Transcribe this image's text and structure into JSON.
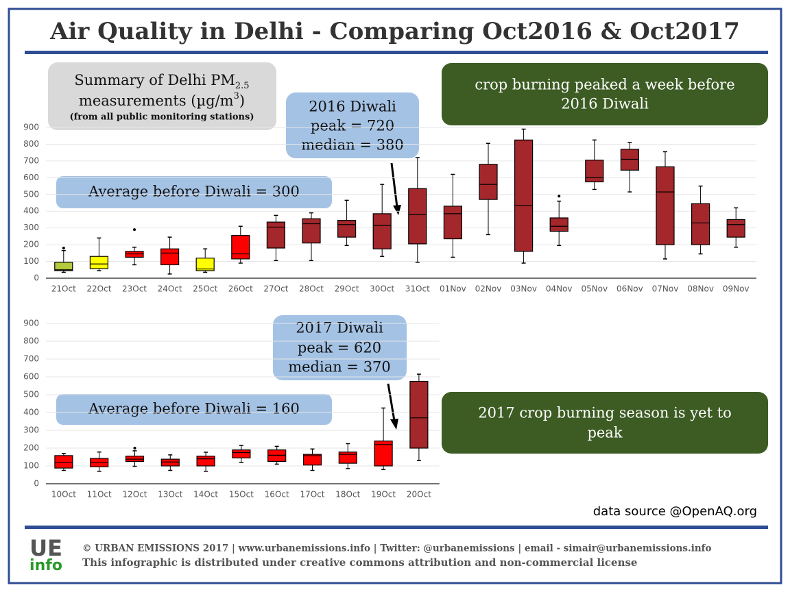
{
  "title": "Air Quality in Delhi - Comparing Oct2016 & Oct2017",
  "summary": {
    "line1": "Summary of Delhi PM",
    "line1_sub": "2.5",
    "line2": "measurements (µg/m",
    "line2_sup": "3",
    "line2_end": ")",
    "line3": "(from all public monitoring stations)"
  },
  "data_source": "data source @OpenAQ.org",
  "footer": {
    "logo_top": "UE",
    "logo_bottom": "info",
    "line1": "© URBAN EMISSIONS 2017 | www.urbanemissions.info | Twitter: @urbanemissions | email - simair@urbanemissions.info",
    "line2": "This infographic is distributed under creative commons attribution and non-commercial license"
  },
  "chart_data": [
    {
      "type": "box",
      "categories": [
        "21Oct",
        "22Oct",
        "23Oct",
        "24Oct",
        "25Oct",
        "26Oct",
        "27Oct",
        "28Oct",
        "29Oct",
        "30Oct",
        "31Oct",
        "01Nov",
        "02Nov",
        "03Nov",
        "04Nov",
        "05Nov",
        "06Nov",
        "07Nov",
        "08Nov",
        "09Nov"
      ],
      "min": [
        35,
        45,
        80,
        25,
        35,
        90,
        105,
        105,
        195,
        130,
        95,
        125,
        260,
        90,
        195,
        530,
        515,
        115,
        145,
        185
      ],
      "q1": [
        45,
        57,
        125,
        80,
        45,
        115,
        180,
        210,
        245,
        175,
        205,
        235,
        470,
        160,
        280,
        575,
        645,
        200,
        200,
        245
      ],
      "median": [
        50,
        85,
        145,
        150,
        55,
        145,
        305,
        325,
        320,
        315,
        380,
        385,
        560,
        435,
        310,
        600,
        710,
        515,
        330,
        320
      ],
      "q3": [
        95,
        130,
        160,
        175,
        120,
        255,
        335,
        355,
        345,
        385,
        535,
        430,
        680,
        825,
        360,
        705,
        770,
        665,
        445,
        350
      ],
      "max": [
        165,
        240,
        185,
        245,
        175,
        310,
        375,
        390,
        465,
        560,
        720,
        620,
        805,
        890,
        460,
        825,
        810,
        755,
        550,
        420
      ],
      "outliers": [
        [
          180
        ],
        [],
        [
          290
        ],
        [],
        [],
        [],
        [],
        [],
        [],
        [],
        [],
        [],
        [],
        [],
        [
          490
        ],
        [],
        [],
        [],
        [],
        []
      ],
      "colors": [
        "#b5c93c",
        "#ffff00",
        "#ff0000",
        "#ff0000",
        "#ffff00",
        "#ff0000",
        "#a3272b",
        "#a3272b",
        "#a3272b",
        "#a3272b",
        "#a3272b",
        "#a3272b",
        "#a3272b",
        "#a3272b",
        "#a3272b",
        "#a3272b",
        "#a3272b",
        "#a3272b",
        "#a3272b",
        "#a3272b"
      ],
      "ylim": [
        0,
        900
      ],
      "yticks": [
        0,
        100,
        200,
        300,
        400,
        500,
        600,
        700,
        800,
        900
      ],
      "grid": true,
      "annotations": {
        "diwali": [
          "2016 Diwali",
          "peak = 720",
          "median = 380"
        ],
        "average": "Average before Diwali = 300",
        "crop": [
          "crop burning peaked a week before",
          "2016 Diwali"
        ]
      }
    },
    {
      "type": "box",
      "categories": [
        "10Oct",
        "11Oct",
        "12Oct",
        "13Oct",
        "14Oct",
        "15Oct",
        "16Oct",
        "17Oct",
        "18Oct",
        "19Oct",
        "20Oct"
      ],
      "min": [
        75,
        70,
        98,
        75,
        70,
        120,
        110,
        75,
        85,
        80,
        130
      ],
      "q1": [
        88,
        95,
        125,
        100,
        100,
        145,
        125,
        105,
        115,
        100,
        200
      ],
      "median": [
        120,
        120,
        138,
        122,
        140,
        175,
        160,
        158,
        165,
        220,
        370
      ],
      "q3": [
        158,
        142,
        155,
        138,
        155,
        190,
        190,
        165,
        178,
        240,
        575
      ],
      "max": [
        170,
        178,
        185,
        162,
        177,
        215,
        210,
        195,
        225,
        425,
        615
      ],
      "outliers": [
        [],
        [],
        [
          200
        ],
        [],
        [],
        [],
        [],
        [],
        [],
        [],
        []
      ],
      "colors": [
        "#ff0000",
        "#ff0000",
        "#ff0000",
        "#ff0000",
        "#ff0000",
        "#ff0000",
        "#ff0000",
        "#ff0000",
        "#ff0000",
        "#ff0000",
        "#a3272b"
      ],
      "ylim": [
        0,
        900
      ],
      "yticks": [
        0,
        100,
        200,
        300,
        400,
        500,
        600,
        700,
        800,
        900
      ],
      "grid": true,
      "annotations": {
        "diwali": [
          "2017 Diwali",
          "peak = 620",
          "median = 370"
        ],
        "average": "Average before Diwali = 160",
        "crop": [
          "2017 crop burning season is yet to",
          "peak"
        ]
      }
    }
  ]
}
